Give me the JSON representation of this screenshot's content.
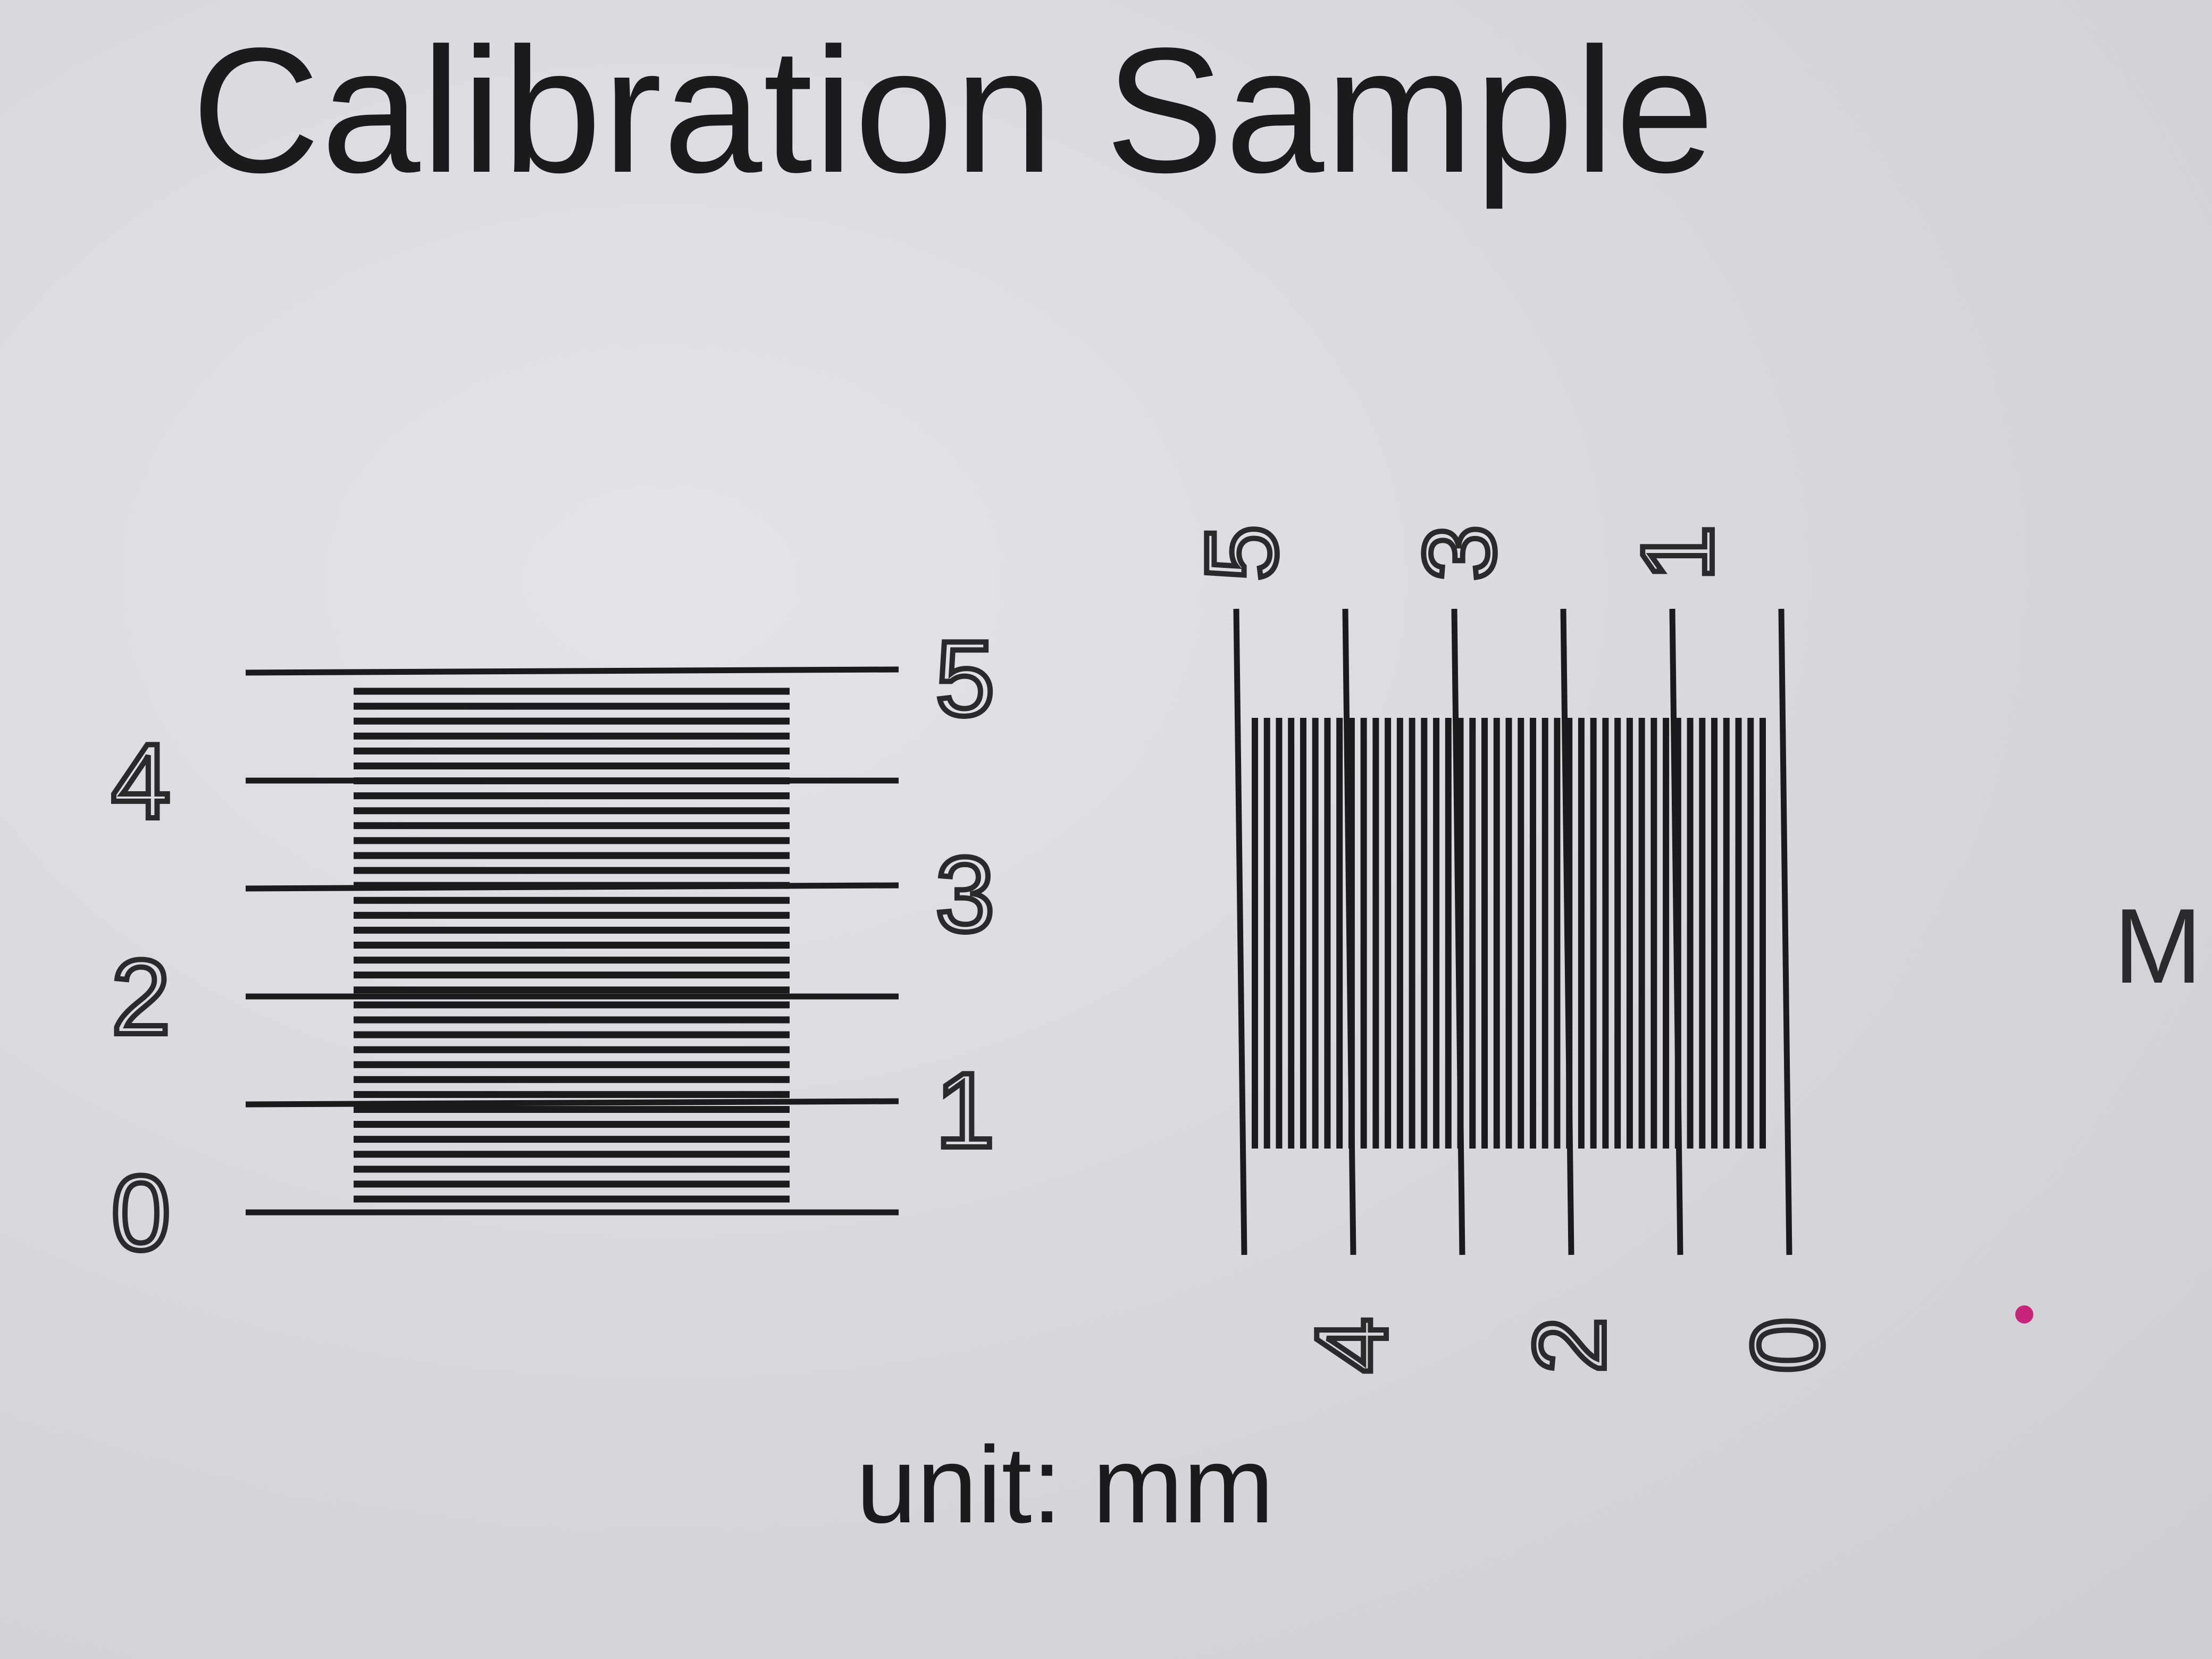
{
  "title": "Calibration Sample",
  "unit_label": "unit: mm",
  "side_letter": "M",
  "colors": {
    "ink": "#1b1a1c",
    "paper": "#d9d8dd",
    "dot": "#c8247a"
  },
  "horizontal_scale": {
    "major_marks_mm": [
      0,
      1,
      2,
      3,
      4,
      5
    ],
    "left_labels": [
      "4",
      "2",
      "0"
    ],
    "right_labels": [
      "5",
      "3",
      "1"
    ],
    "fine_lines_count": 35
  },
  "vertical_scale": {
    "major_marks_mm": [
      0,
      1,
      2,
      3,
      4,
      5
    ],
    "top_labels": [
      "5",
      "3",
      "1"
    ],
    "bottom_labels": [
      "4",
      "2",
      "0"
    ],
    "fine_lines_count": 43
  }
}
